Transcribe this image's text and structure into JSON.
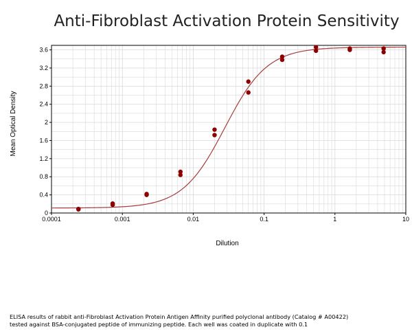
{
  "chart_data": {
    "type": "scatter",
    "title": "Anti-Fibroblast Activation Protein Sensitivity",
    "xlabel": "Dilution",
    "ylabel": "Mean Optical Density",
    "xscale": "log",
    "xlim": [
      0.0001,
      10
    ],
    "ylim": [
      0,
      3.7
    ],
    "grid": true,
    "x_ticks": [
      "0.0001",
      "0.001",
      "0.01",
      "0.1",
      "1",
      "10"
    ],
    "y_ticks": [
      "0",
      "0.4",
      "0.8",
      "1.2",
      "1.6",
      "2",
      "2.4",
      "2.8",
      "3.2",
      "3.6"
    ],
    "points": [
      {
        "x": 0.00024,
        "y": 0.08
      },
      {
        "x": 0.00024,
        "y": 0.09
      },
      {
        "x": 0.00073,
        "y": 0.18
      },
      {
        "x": 0.00073,
        "y": 0.21
      },
      {
        "x": 0.0022,
        "y": 0.4
      },
      {
        "x": 0.0022,
        "y": 0.42
      },
      {
        "x": 0.0066,
        "y": 0.84
      },
      {
        "x": 0.0066,
        "y": 0.91
      },
      {
        "x": 0.02,
        "y": 1.72
      },
      {
        "x": 0.02,
        "y": 1.84
      },
      {
        "x": 0.06,
        "y": 2.66
      },
      {
        "x": 0.06,
        "y": 2.9
      },
      {
        "x": 0.18,
        "y": 3.38
      },
      {
        "x": 0.18,
        "y": 3.45
      },
      {
        "x": 0.54,
        "y": 3.58
      },
      {
        "x": 0.54,
        "y": 3.66
      },
      {
        "x": 1.62,
        "y": 3.6
      },
      {
        "x": 1.62,
        "y": 3.63
      },
      {
        "x": 4.86,
        "y": 3.55
      },
      {
        "x": 4.86,
        "y": 3.63
      }
    ],
    "colors": {
      "points": "#8b0000",
      "curve": "#a83a3a",
      "grid": "#d8d8d8"
    }
  },
  "caption": {
    "line1": "ELISA results of rabbit anti-Fibroblast Activation Protein Antigen Affinity purified polyclonal antibody (Catalog # A00422)",
    "line2": "tested against BSA-conjugated peptide of immunizing peptide. Each well was coated in duplicate with 0.1"
  }
}
